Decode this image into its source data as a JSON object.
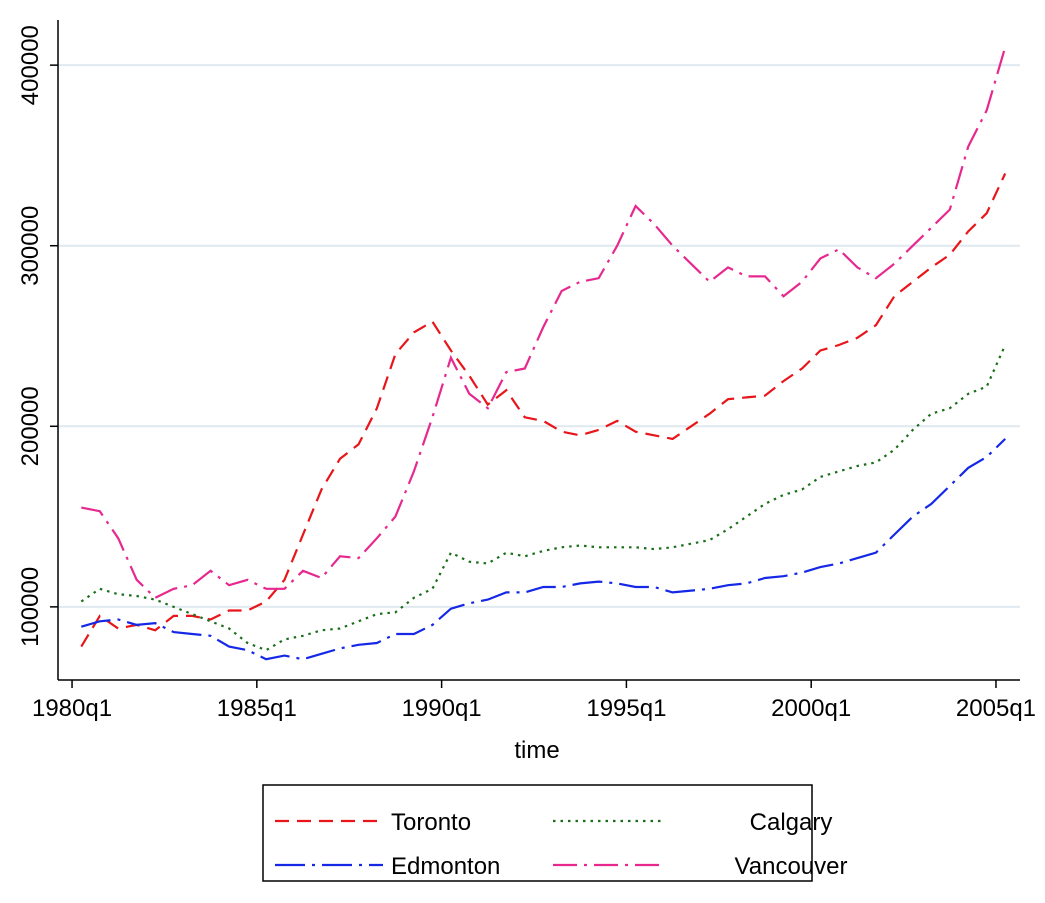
{
  "chart_data": {
    "type": "line",
    "x_label": "time",
    "x": [
      1980.25,
      1980.75,
      1981.25,
      1981.75,
      1982.25,
      1982.75,
      1983.25,
      1983.75,
      1984.25,
      1984.75,
      1985.25,
      1985.75,
      1986.25,
      1986.75,
      1987.25,
      1987.75,
      1988.25,
      1988.75,
      1989.25,
      1989.75,
      1990.25,
      1990.75,
      1991.25,
      1991.75,
      1992.25,
      1992.75,
      1993.25,
      1993.75,
      1994.25,
      1994.75,
      1995.25,
      1995.75,
      1996.25,
      1996.75,
      1997.25,
      1997.75,
      1998.25,
      1998.75,
      1999.25,
      1999.75,
      2000.25,
      2000.75,
      2001.25,
      2001.75,
      2002.25,
      2002.75,
      2003.25,
      2003.75,
      2004.25,
      2004.75,
      2005.25
    ],
    "xlim": [
      1979.62,
      2005.65
    ],
    "xticks": [
      {
        "value": 1980,
        "label": "1980q1"
      },
      {
        "value": 1985,
        "label": "1985q1"
      },
      {
        "value": 1990,
        "label": "1990q1"
      },
      {
        "value": 1995,
        "label": "1995q1"
      },
      {
        "value": 2000,
        "label": "2000q1"
      },
      {
        "value": 2005,
        "label": "2005q1"
      }
    ],
    "ylim": [
      59500,
      425000
    ],
    "yticks": [
      100000,
      200000,
      300000,
      400000
    ],
    "grid": true,
    "legend": "bottom",
    "series": [
      {
        "name": "Toronto",
        "color": "#e8161a",
        "style": "dashed",
        "values": [
          78000,
          95000,
          88000,
          90000,
          87000,
          95000,
          95000,
          93000,
          98000,
          98000,
          103000,
          115000,
          140000,
          165000,
          182000,
          190000,
          210000,
          240000,
          252000,
          258000,
          242000,
          228000,
          212000,
          220000,
          205000,
          203000,
          197000,
          195000,
          198000,
          203000,
          197000,
          195000,
          193000,
          200000,
          207000,
          215000,
          216000,
          217000,
          225000,
          232000,
          242000,
          245000,
          249000,
          256000,
          272000,
          280000,
          288000,
          295000,
          308000,
          318000,
          340000
        ]
      },
      {
        "name": "Calgary",
        "color": "#1a6e1a",
        "style": "dotted",
        "values": [
          103000,
          110000,
          107000,
          106000,
          104000,
          100000,
          96000,
          92000,
          88000,
          80000,
          76000,
          82000,
          84000,
          87000,
          88000,
          92000,
          96000,
          97000,
          105000,
          110000,
          130000,
          125000,
          124000,
          130000,
          128000,
          131000,
          133000,
          134000,
          133000,
          133000,
          133000,
          132000,
          133000,
          135000,
          137000,
          143000,
          150000,
          157000,
          162000,
          165000,
          172000,
          175000,
          178000,
          180000,
          187000,
          198000,
          207000,
          210000,
          218000,
          222000,
          245000
        ]
      },
      {
        "name": "Edmonton",
        "color": "#1428e6",
        "style": "longdashdot",
        "values": [
          89000,
          92000,
          93000,
          90000,
          91000,
          86000,
          85000,
          84000,
          78000,
          76000,
          71000,
          73000,
          71000,
          74000,
          77000,
          79000,
          80000,
          85000,
          85000,
          90000,
          99000,
          102000,
          104000,
          108000,
          108000,
          111000,
          111000,
          113000,
          114000,
          113000,
          111000,
          111000,
          108000,
          109000,
          110000,
          112000,
          113000,
          116000,
          117000,
          119000,
          122000,
          124000,
          127000,
          130000,
          140000,
          150000,
          157000,
          167000,
          177000,
          183000,
          193000
        ]
      },
      {
        "name": "Vancouver",
        "color": "#e6288f",
        "style": "dashdot",
        "values": [
          155000,
          153000,
          138000,
          115000,
          105000,
          110000,
          112000,
          120000,
          112000,
          115000,
          110000,
          110000,
          120000,
          116000,
          128000,
          127000,
          138000,
          150000,
          175000,
          205000,
          238000,
          218000,
          210000,
          230000,
          232000,
          255000,
          275000,
          280000,
          282000,
          300000,
          322000,
          312000,
          300000,
          290000,
          280000,
          288000,
          283000,
          283000,
          272000,
          280000,
          293000,
          298000,
          288000,
          282000,
          290000,
          300000,
          310000,
          320000,
          355000,
          375000,
          410000
        ]
      }
    ]
  }
}
